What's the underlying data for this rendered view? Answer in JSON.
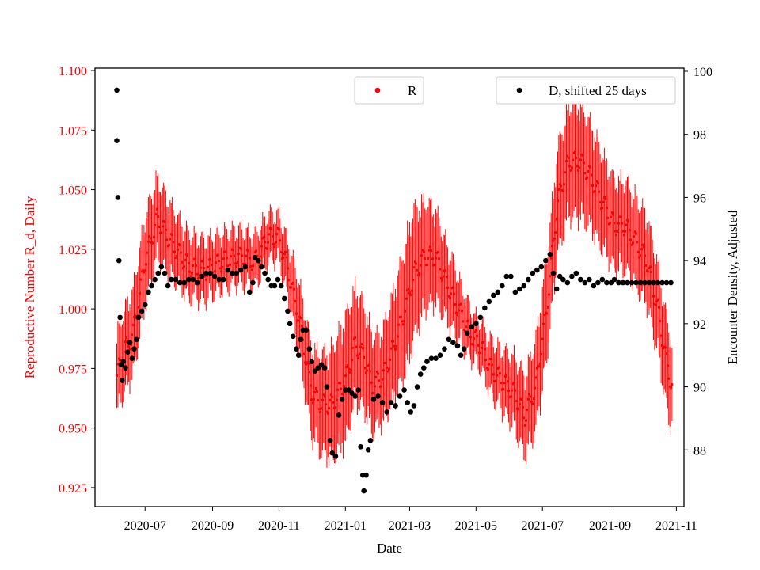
{
  "chart_data": {
    "type": "scatter",
    "title": "",
    "xlabel": "Date",
    "ylabel_left": "Reproductive Number R_d, Daily",
    "ylabel_right": "Encounter Density, Adjusted",
    "x_ticks": [
      "2020-07",
      "2020-09",
      "2020-11",
      "2021-01",
      "2021-03",
      "2021-05",
      "2021-07",
      "2021-09",
      "2021-11"
    ],
    "x_range": [
      "2020-05-16",
      "2021-11-08"
    ],
    "y_left_ticks": [
      "0.925",
      "0.950",
      "0.975",
      "1.000",
      "1.025",
      "1.050",
      "1.075",
      "1.100"
    ],
    "y_left_range": [
      0.917,
      1.101
    ],
    "y_right_ticks": [
      "88",
      "90",
      "92",
      "94",
      "96",
      "98",
      "100"
    ],
    "y_right_range": [
      86.2,
      100.1
    ],
    "colors": {
      "R": "#ff0000",
      "D": "#000000",
      "axis": "#000000",
      "left_axis_text": "#ff0000"
    },
    "legend": [
      {
        "label": "R",
        "color": "#ff0000",
        "placement": "upper-center"
      },
      {
        "label": "D, shifted 25 days",
        "color": "#000000",
        "placement": "upper-right"
      }
    ],
    "series": [
      {
        "name": "R",
        "axis": "left",
        "marker": "dot",
        "error_bars": true,
        "x_start": "2020-06-05",
        "x_end": "2021-10-28",
        "knots_x": [
          "2020-06-05",
          "2020-06-10",
          "2020-06-20",
          "2020-07-01",
          "2020-07-12",
          "2020-07-25",
          "2020-08-10",
          "2020-08-25",
          "2020-09-10",
          "2020-09-25",
          "2020-10-10",
          "2020-10-22",
          "2020-11-01",
          "2020-11-10",
          "2020-11-20",
          "2020-12-01",
          "2020-12-10",
          "2020-12-20",
          "2021-01-01",
          "2021-01-10",
          "2021-01-18",
          "2021-01-26",
          "2021-02-05",
          "2021-02-15",
          "2021-02-25",
          "2021-03-05",
          "2021-03-15",
          "2021-03-25",
          "2021-04-05",
          "2021-04-15",
          "2021-04-25",
          "2021-05-05",
          "2021-05-15",
          "2021-05-25",
          "2021-06-05",
          "2021-06-15",
          "2021-06-25",
          "2021-07-05",
          "2021-07-15",
          "2021-07-25",
          "2021-08-05",
          "2021-08-15",
          "2021-08-25",
          "2021-09-05",
          "2021-09-15",
          "2021-09-25",
          "2021-10-05",
          "2021-10-15",
          "2021-10-22",
          "2021-10-28"
        ],
        "knots_y": [
          0.972,
          0.98,
          0.99,
          1.02,
          1.038,
          1.028,
          1.018,
          1.016,
          1.02,
          1.022,
          1.02,
          1.03,
          1.03,
          1.015,
          0.995,
          0.965,
          0.96,
          0.96,
          0.97,
          0.985,
          0.98,
          0.968,
          0.972,
          0.985,
          1.0,
          1.015,
          1.022,
          1.022,
          1.01,
          1.0,
          0.99,
          0.985,
          0.975,
          0.97,
          0.965,
          0.955,
          0.968,
          1.0,
          1.045,
          1.062,
          1.062,
          1.055,
          1.045,
          1.035,
          1.035,
          1.028,
          1.02,
          1.0,
          0.98,
          0.967
        ],
        "err_x": [
          "2020-06-05",
          "2020-07-01",
          "2020-08-01",
          "2020-09-01",
          "2020-10-01",
          "2020-11-01",
          "2020-12-01",
          "2021-01-01",
          "2021-02-01",
          "2021-03-01",
          "2021-04-01",
          "2021-05-01",
          "2021-06-01",
          "2021-07-01",
          "2021-08-01",
          "2021-09-01",
          "2021-10-01",
          "2021-10-28"
        ],
        "err_half": [
          0.018,
          0.02,
          0.015,
          0.013,
          0.012,
          0.01,
          0.02,
          0.028,
          0.02,
          0.03,
          0.018,
          0.01,
          0.015,
          0.022,
          0.026,
          0.02,
          0.02,
          0.02
        ]
      },
      {
        "name": "D, shifted 25 days",
        "axis": "right",
        "marker": "dot",
        "points": [
          [
            "2020-06-05",
            99.4
          ],
          [
            "2020-06-05",
            97.8
          ],
          [
            "2020-06-06",
            96.0
          ],
          [
            "2020-06-07",
            94.0
          ],
          [
            "2020-06-08",
            92.2
          ],
          [
            "2020-06-09",
            90.7
          ],
          [
            "2020-06-10",
            90.2
          ],
          [
            "2020-06-11",
            90.8
          ],
          [
            "2020-06-13",
            90.6
          ],
          [
            "2020-06-15",
            91.1
          ],
          [
            "2020-06-17",
            91.4
          ],
          [
            "2020-06-19",
            90.9
          ],
          [
            "2020-06-21",
            91.2
          ],
          [
            "2020-06-23",
            91.5
          ],
          [
            "2020-06-25",
            92.2
          ],
          [
            "2020-06-28",
            92.4
          ],
          [
            "2020-07-01",
            92.6
          ],
          [
            "2020-07-04",
            93.0
          ],
          [
            "2020-07-07",
            93.2
          ],
          [
            "2020-07-10",
            93.4
          ],
          [
            "2020-07-13",
            93.6
          ],
          [
            "2020-07-16",
            93.8
          ],
          [
            "2020-07-19",
            93.6
          ],
          [
            "2020-07-22",
            93.2
          ],
          [
            "2020-07-25",
            93.4
          ],
          [
            "2020-07-29",
            93.4
          ],
          [
            "2020-08-02",
            93.3
          ],
          [
            "2020-08-06",
            93.3
          ],
          [
            "2020-08-10",
            93.4
          ],
          [
            "2020-08-14",
            93.4
          ],
          [
            "2020-08-18",
            93.3
          ],
          [
            "2020-08-22",
            93.5
          ],
          [
            "2020-08-26",
            93.6
          ],
          [
            "2020-08-30",
            93.6
          ],
          [
            "2020-09-03",
            93.5
          ],
          [
            "2020-09-07",
            93.4
          ],
          [
            "2020-09-11",
            93.4
          ],
          [
            "2020-09-15",
            93.7
          ],
          [
            "2020-09-19",
            93.6
          ],
          [
            "2020-09-23",
            93.6
          ],
          [
            "2020-09-27",
            93.7
          ],
          [
            "2020-10-01",
            93.8
          ],
          [
            "2020-10-05",
            93.0
          ],
          [
            "2020-10-08",
            93.3
          ],
          [
            "2020-10-10",
            94.1
          ],
          [
            "2020-10-13",
            94.0
          ],
          [
            "2020-10-16",
            93.8
          ],
          [
            "2020-10-19",
            93.6
          ],
          [
            "2020-10-22",
            93.4
          ],
          [
            "2020-10-25",
            93.2
          ],
          [
            "2020-10-28",
            93.2
          ],
          [
            "2020-10-31",
            93.4
          ],
          [
            "2020-11-03",
            93.2
          ],
          [
            "2020-11-06",
            92.8
          ],
          [
            "2020-11-09",
            92.4
          ],
          [
            "2020-11-11",
            92.0
          ],
          [
            "2020-11-14",
            91.6
          ],
          [
            "2020-11-17",
            91.2
          ],
          [
            "2020-11-19",
            91.0
          ],
          [
            "2020-11-21",
            91.5
          ],
          [
            "2020-11-23",
            91.8
          ],
          [
            "2020-11-26",
            91.8
          ],
          [
            "2020-11-29",
            91.2
          ],
          [
            "2020-12-01",
            90.8
          ],
          [
            "2020-12-04",
            90.5
          ],
          [
            "2020-12-07",
            90.6
          ],
          [
            "2020-12-10",
            90.7
          ],
          [
            "2020-12-13",
            90.6
          ],
          [
            "2020-12-15",
            90.0
          ],
          [
            "2020-12-18",
            88.3
          ],
          [
            "2020-12-20",
            87.9
          ],
          [
            "2020-12-23",
            87.8
          ],
          [
            "2020-12-26",
            89.1
          ],
          [
            "2020-12-29",
            89.6
          ],
          [
            "2021-01-01",
            89.9
          ],
          [
            "2021-01-04",
            89.9
          ],
          [
            "2021-01-07",
            89.8
          ],
          [
            "2021-01-10",
            89.7
          ],
          [
            "2021-01-13",
            89.9
          ],
          [
            "2021-01-15",
            88.1
          ],
          [
            "2021-01-17",
            87.2
          ],
          [
            "2021-01-18",
            86.7
          ],
          [
            "2021-01-20",
            87.2
          ],
          [
            "2021-01-22",
            88.0
          ],
          [
            "2021-01-24",
            88.3
          ],
          [
            "2021-01-27",
            89.6
          ],
          [
            "2021-01-31",
            89.7
          ],
          [
            "2021-02-04",
            89.5
          ],
          [
            "2021-02-08",
            89.2
          ],
          [
            "2021-02-12",
            89.5
          ],
          [
            "2021-02-16",
            89.4
          ],
          [
            "2021-02-20",
            89.7
          ],
          [
            "2021-02-24",
            89.9
          ],
          [
            "2021-02-27",
            89.5
          ],
          [
            "2021-03-02",
            89.2
          ],
          [
            "2021-03-05",
            89.4
          ],
          [
            "2021-03-08",
            90.0
          ],
          [
            "2021-03-11",
            90.4
          ],
          [
            "2021-03-14",
            90.6
          ],
          [
            "2021-03-17",
            90.8
          ],
          [
            "2021-03-21",
            90.9
          ],
          [
            "2021-03-25",
            90.9
          ],
          [
            "2021-03-29",
            91.0
          ],
          [
            "2021-04-02",
            91.2
          ],
          [
            "2021-04-06",
            91.5
          ],
          [
            "2021-04-10",
            91.4
          ],
          [
            "2021-04-14",
            91.3
          ],
          [
            "2021-04-17",
            91.0
          ],
          [
            "2021-04-20",
            91.2
          ],
          [
            "2021-04-23",
            91.7
          ],
          [
            "2021-04-27",
            91.9
          ],
          [
            "2021-05-01",
            92.0
          ],
          [
            "2021-05-05",
            92.2
          ],
          [
            "2021-05-09",
            92.5
          ],
          [
            "2021-05-13",
            92.7
          ],
          [
            "2021-05-17",
            92.9
          ],
          [
            "2021-05-21",
            93.0
          ],
          [
            "2021-05-25",
            93.2
          ],
          [
            "2021-05-29",
            93.5
          ],
          [
            "2021-06-02",
            93.5
          ],
          [
            "2021-06-06",
            93.0
          ],
          [
            "2021-06-10",
            93.1
          ],
          [
            "2021-06-14",
            93.2
          ],
          [
            "2021-06-18",
            93.4
          ],
          [
            "2021-06-22",
            93.6
          ],
          [
            "2021-06-26",
            93.7
          ],
          [
            "2021-06-30",
            93.8
          ],
          [
            "2021-07-04",
            94.0
          ],
          [
            "2021-07-08",
            94.2
          ],
          [
            "2021-07-11",
            93.6
          ],
          [
            "2021-07-14",
            93.1
          ],
          [
            "2021-07-17",
            93.5
          ],
          [
            "2021-07-20",
            93.4
          ],
          [
            "2021-07-24",
            93.3
          ],
          [
            "2021-07-28",
            93.5
          ],
          [
            "2021-08-01",
            93.6
          ],
          [
            "2021-08-05",
            93.4
          ],
          [
            "2021-08-09",
            93.3
          ],
          [
            "2021-08-13",
            93.4
          ],
          [
            "2021-08-17",
            93.2
          ],
          [
            "2021-08-21",
            93.3
          ],
          [
            "2021-08-25",
            93.4
          ],
          [
            "2021-08-29",
            93.3
          ],
          [
            "2021-09-02",
            93.3
          ],
          [
            "2021-09-05",
            93.4
          ],
          [
            "2021-09-09",
            93.3
          ],
          [
            "2021-09-13",
            93.3
          ],
          [
            "2021-09-17",
            93.3
          ],
          [
            "2021-09-21",
            93.3
          ],
          [
            "2021-09-25",
            93.3
          ],
          [
            "2021-09-29",
            93.3
          ],
          [
            "2021-10-03",
            93.3
          ],
          [
            "2021-10-07",
            93.3
          ],
          [
            "2021-10-11",
            93.3
          ],
          [
            "2021-10-15",
            93.3
          ],
          [
            "2021-10-19",
            93.3
          ],
          [
            "2021-10-23",
            93.3
          ],
          [
            "2021-10-27",
            93.3
          ]
        ]
      }
    ]
  }
}
